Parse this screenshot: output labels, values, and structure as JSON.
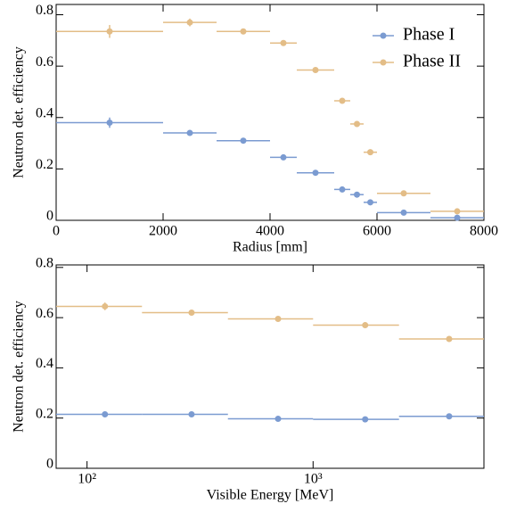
{
  "chart_data": [
    {
      "type": "scatter",
      "xlabel": "Radius [mm]",
      "ylabel": "Neutron det. efficiency",
      "xlim": [
        0,
        8000
      ],
      "ylim": [
        0,
        0.84
      ],
      "xticks": [
        0,
        2000,
        4000,
        6000,
        8000
      ],
      "yticks": [
        0,
        0.2,
        0.4,
        0.6,
        0.8
      ],
      "legend": "upper right",
      "bins": [
        0,
        2000,
        3000,
        4000,
        4500,
        5200,
        5500,
        5750,
        6000,
        7000,
        8000
      ],
      "x": [
        1000,
        2500,
        3500,
        4250,
        4850,
        5350,
        5625,
        5875,
        6500,
        7500
      ],
      "series": [
        {
          "name": "Phase I",
          "color": "#7b9bd1",
          "values": [
            0.38,
            0.34,
            0.31,
            0.245,
            0.185,
            0.12,
            0.1,
            0.07,
            0.03,
            0.01
          ],
          "errors": [
            0.02,
            0.008,
            0.006,
            0.006,
            0.006,
            0.006,
            0.006,
            0.006,
            0.004,
            0.003
          ]
        },
        {
          "name": "Phase II",
          "color": "#e3bd87",
          "values": [
            0.735,
            0.77,
            0.735,
            0.69,
            0.585,
            0.465,
            0.375,
            0.265,
            0.105,
            0.035
          ],
          "errors": [
            0.025,
            0.015,
            0.008,
            0.008,
            0.008,
            0.008,
            0.008,
            0.008,
            0.006,
            0.005
          ]
        }
      ]
    },
    {
      "type": "scatter",
      "xlabel": "Visible Energy [MeV]",
      "ylabel": "Neutron det. efficiency",
      "xscale": "log",
      "xlim": [
        73,
        5700
      ],
      "ylim": [
        0,
        0.81
      ],
      "xticks": [
        {
          "value": 100,
          "label": "10²"
        },
        {
          "value": 1000,
          "label": "10³"
        }
      ],
      "yticks": [
        0,
        0.2,
        0.4,
        0.6,
        0.8
      ],
      "bins": [
        73,
        175,
        420,
        1000,
        2400,
        5700
      ],
      "x": [
        120,
        290,
        700,
        1700,
        4000
      ],
      "series": [
        {
          "name": "Phase I",
          "color": "#7b9bd1",
          "values": [
            0.215,
            0.215,
            0.197,
            0.195,
            0.207
          ],
          "errors": [
            0.006,
            0.006,
            0.005,
            0.005,
            0.005
          ]
        },
        {
          "name": "Phase II",
          "color": "#e3bd87",
          "values": [
            0.645,
            0.62,
            0.595,
            0.57,
            0.515
          ],
          "errors": [
            0.015,
            0.008,
            0.007,
            0.007,
            0.007
          ]
        }
      ]
    }
  ]
}
